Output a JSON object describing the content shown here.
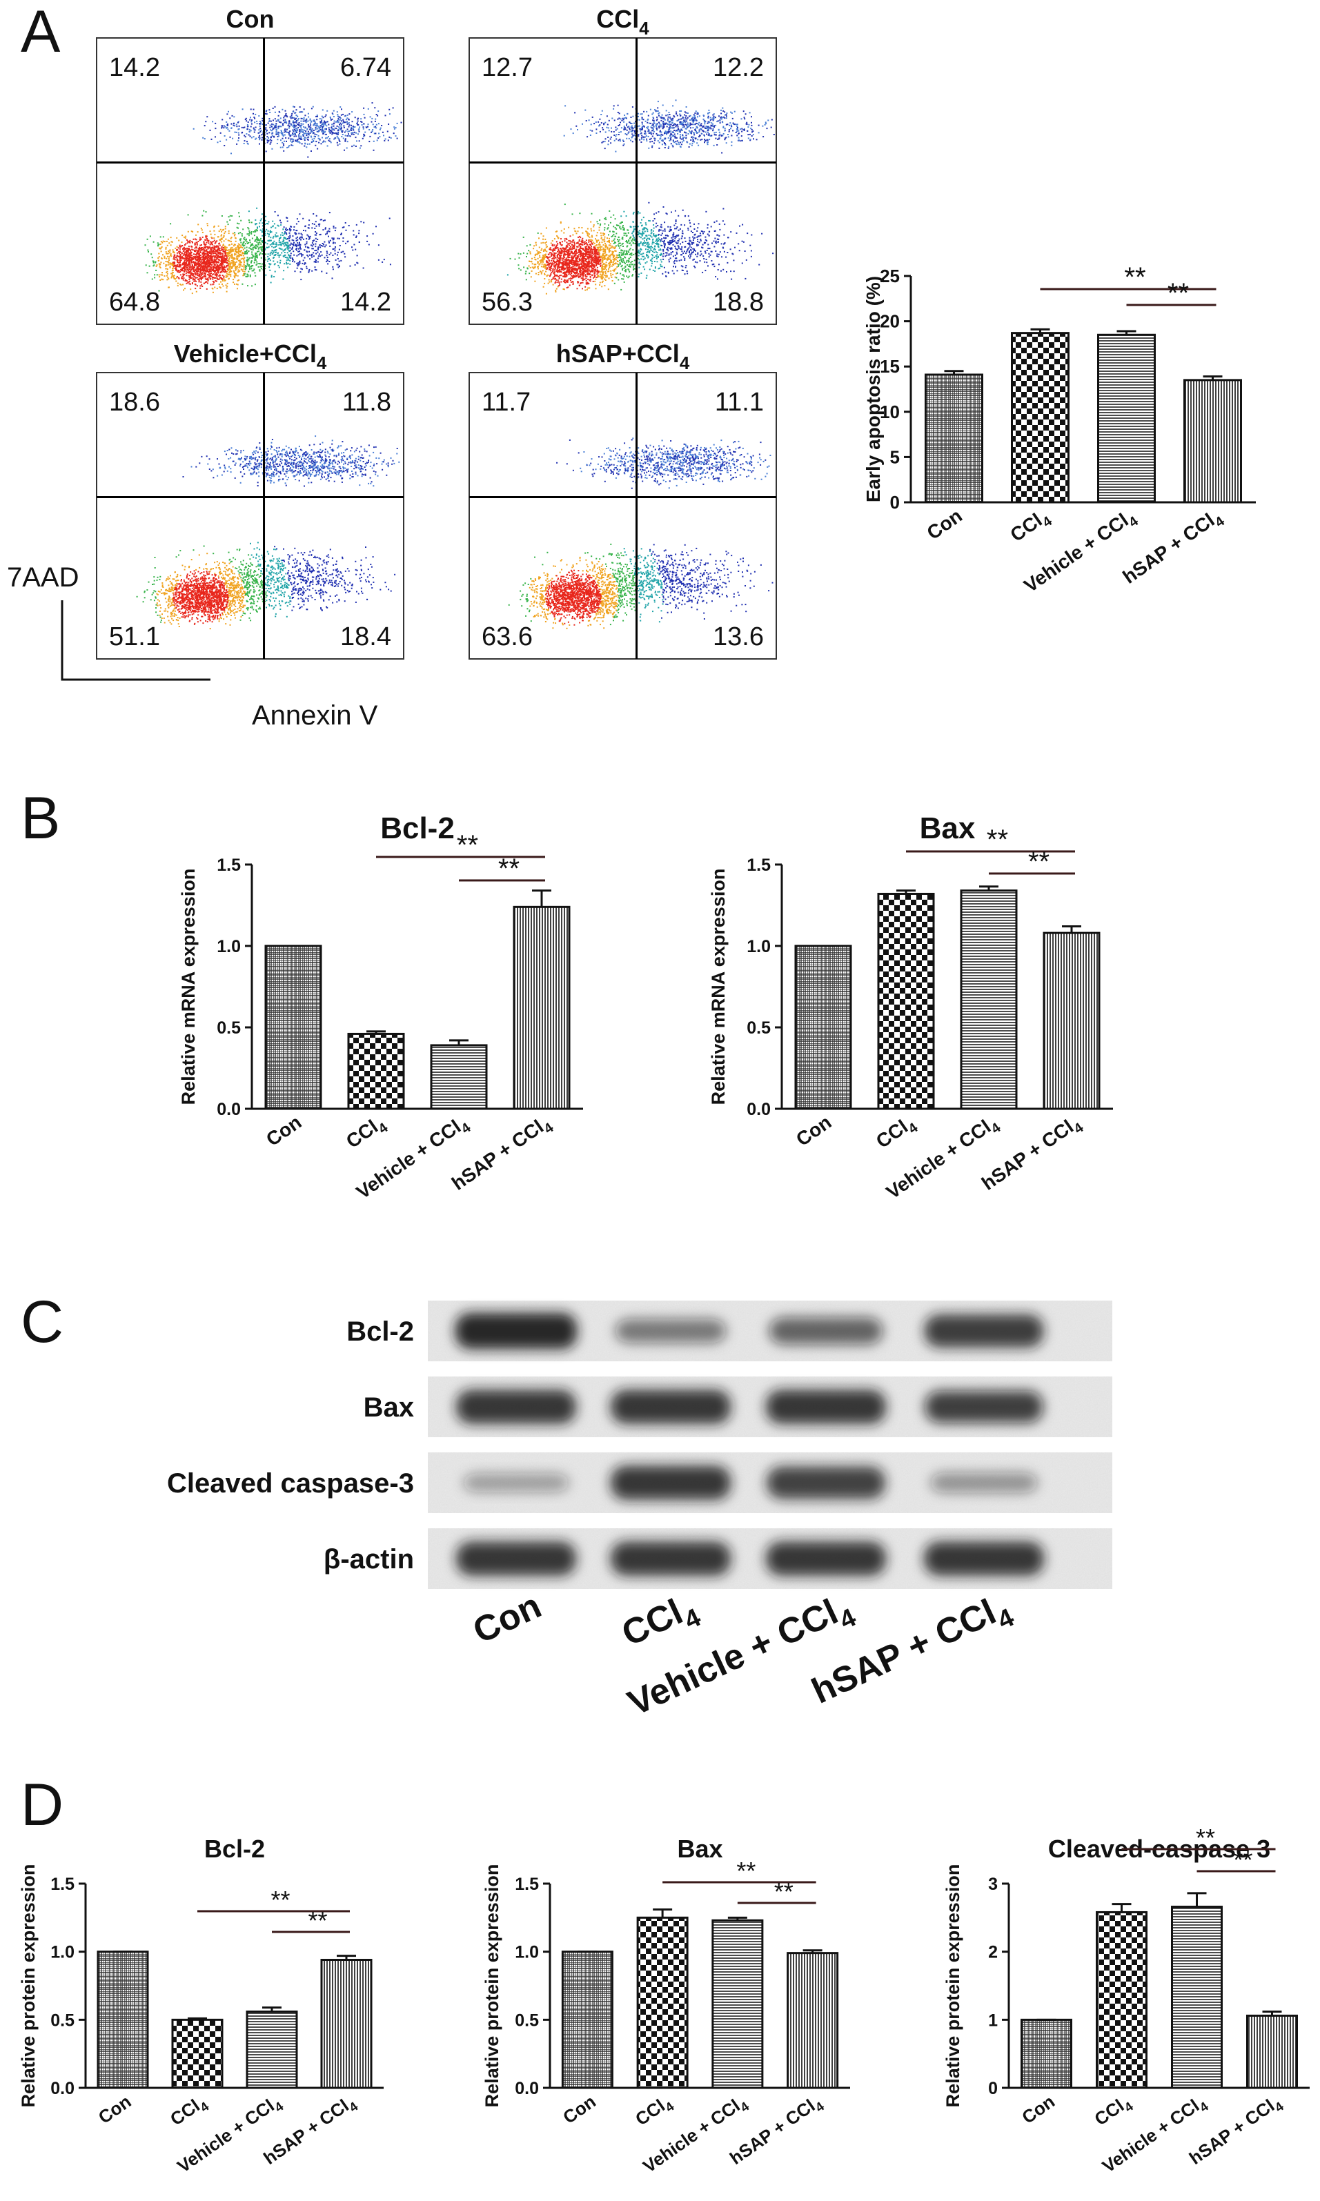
{
  "panel_labels": {
    "a": "A",
    "b": "B",
    "c": "C",
    "d": "D"
  },
  "colors": {
    "axis": "#111111",
    "grid_line": "#000000",
    "bar_fill": "#ffffff",
    "band": "#151515",
    "density_low": "#1f2fb0",
    "density_mid": "#37b34a",
    "density_high": "#e8271c"
  },
  "flow": {
    "ylabel": "7AAD",
    "xlabel": "Annexin V",
    "plots": [
      {
        "title": "Con",
        "q": [
          "14.2",
          "6.74",
          "64.8",
          "14.2"
        ]
      },
      {
        "title": "CCl",
        "title_sub": "4",
        "q": [
          "12.7",
          "12.2",
          "56.3",
          "18.8"
        ]
      },
      {
        "title": "Vehicle+CCl",
        "title_sub": "4",
        "q": [
          "18.6",
          "11.8",
          "51.1",
          "18.4"
        ]
      },
      {
        "title": "hSAP+CCl",
        "title_sub": "4",
        "q": [
          "11.7",
          "11.1",
          "63.6",
          "13.6"
        ]
      }
    ]
  },
  "categories": [
    {
      "main": "Con",
      "sub": ""
    },
    {
      "main": "CCl",
      "sub": "4"
    },
    {
      "main": "Vehicle + CCl",
      "sub": "4"
    },
    {
      "main": "hSAP + CCl",
      "sub": "4"
    }
  ],
  "sig_label": "**",
  "western": {
    "rows": [
      {
        "label": "Bcl-2",
        "intensity": [
          0.92,
          0.52,
          0.62,
          0.82
        ]
      },
      {
        "label": "Bax",
        "intensity": [
          0.85,
          0.85,
          0.85,
          0.78
        ]
      },
      {
        "label": "Cleaved caspase-3",
        "intensity": [
          0.35,
          0.85,
          0.8,
          0.4
        ]
      },
      {
        "label": "β-actin",
        "intensity": [
          0.85,
          0.85,
          0.85,
          0.85
        ]
      }
    ],
    "lanes": [
      {
        "main": "Con",
        "sub": ""
      },
      {
        "main": "CCl",
        "sub": "4"
      },
      {
        "main": "Vehicle + CCl",
        "sub": "4"
      },
      {
        "main": "hSAP + CCl",
        "sub": "4"
      }
    ]
  },
  "chart_data": [
    {
      "id": "A-early-apoptosis",
      "type": "bar",
      "title": "",
      "categories": [
        "Con",
        "CCl4",
        "Vehicle + CCl4",
        "hSAP + CCl4"
      ],
      "values": [
        14.1,
        18.7,
        18.5,
        13.5
      ],
      "errors": [
        0.4,
        0.4,
        0.4,
        0.4
      ],
      "xlabel": "",
      "ylabel": "Early apoptosis ratio (%)",
      "ylim": [
        0,
        25
      ],
      "yticks": [
        "0",
        "5",
        "10",
        "15",
        "20",
        "25"
      ],
      "legend": "none"
    },
    {
      "id": "B-bcl2",
      "type": "bar",
      "title": "Bcl-2",
      "categories": [
        "Con",
        "CCl4",
        "Vehicle + CCl4",
        "hSAP + CCl4"
      ],
      "values": [
        1.0,
        0.46,
        0.39,
        1.24
      ],
      "errors": [
        0,
        0.015,
        0.03,
        0.1
      ],
      "xlabel": "",
      "ylabel": "Relative mRNA expression",
      "ylim": [
        0,
        1.5
      ],
      "yticks": [
        "0.0",
        "0.5",
        "1.0",
        "1.5"
      ],
      "legend": "none"
    },
    {
      "id": "B-bax",
      "type": "bar",
      "title": "Bax",
      "categories": [
        "Con",
        "CCl4",
        "Vehicle + CCl4",
        "hSAP + CCl4"
      ],
      "values": [
        1.0,
        1.32,
        1.34,
        1.08
      ],
      "errors": [
        0,
        0.02,
        0.025,
        0.04
      ],
      "xlabel": "",
      "ylabel": "Relative mRNA expression",
      "ylim": [
        0,
        1.5
      ],
      "yticks": [
        "0.0",
        "0.5",
        "1.0",
        "1.5"
      ],
      "legend": "none"
    },
    {
      "id": "D-bcl2",
      "type": "bar",
      "title": "Bcl-2",
      "categories": [
        "Con",
        "CCl4",
        "Vehicle + CCl4",
        "hSAP + CCl4"
      ],
      "values": [
        1.0,
        0.5,
        0.56,
        0.94
      ],
      "errors": [
        0,
        0.01,
        0.03,
        0.03
      ],
      "xlabel": "",
      "ylabel": "Relative protein expression",
      "ylim": [
        0,
        1.5
      ],
      "yticks": [
        "0.0",
        "0.5",
        "1.0",
        "1.5"
      ],
      "legend": "none"
    },
    {
      "id": "D-bax",
      "type": "bar",
      "title": "Bax",
      "categories": [
        "Con",
        "CCl4",
        "Vehicle + CCl4",
        "hSAP + CCl4"
      ],
      "values": [
        1.0,
        1.25,
        1.23,
        0.99
      ],
      "errors": [
        0,
        0.06,
        0.02,
        0.02
      ],
      "xlabel": "",
      "ylabel": "Relative protein expression",
      "ylim": [
        0,
        1.5
      ],
      "yticks": [
        "0.0",
        "0.5",
        "1.0",
        "1.5"
      ],
      "legend": "none"
    },
    {
      "id": "D-cleaved-caspase3",
      "type": "bar",
      "title": "Cleaved-caspase 3",
      "categories": [
        "Con",
        "CCl4",
        "Vehicle + CCl4",
        "hSAP + CCl4"
      ],
      "values": [
        1.0,
        2.58,
        2.66,
        1.06
      ],
      "errors": [
        0,
        0.12,
        0.2,
        0.06
      ],
      "xlabel": "",
      "ylabel": "Relative protein expression",
      "ylim": [
        0,
        3
      ],
      "yticks": [
        "0",
        "1",
        "2",
        "3"
      ],
      "legend": "none"
    }
  ]
}
